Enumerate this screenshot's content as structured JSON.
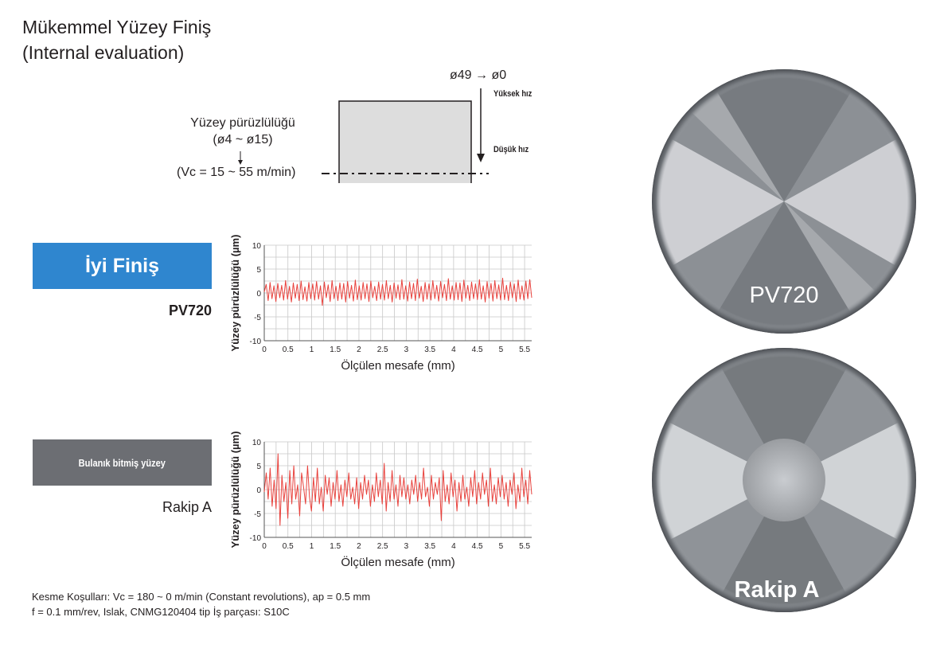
{
  "header": {
    "title_line1": "Mükemmel Yüzey Finiş",
    "title_line2": "(Internal evaluation)"
  },
  "diagram": {
    "diameter_range": "ø49 → ø0",
    "high_speed": "Yüksek hız",
    "low_speed": "Düşük hız",
    "roughness_label": "Yüzey pürüzlülüğü",
    "roughness_range": "(ø4 ~ ø15)",
    "vc_range": "(Vc = 15 ~ 55 m/min)"
  },
  "tags": {
    "good": "İyi Finiş",
    "dull": "Bulanık bitmiş yüzey"
  },
  "products": {
    "pv720": "PV720",
    "rakip": "Rakip A"
  },
  "footnote": {
    "line1": "Kesme Koşulları: Vc = 180 ~ 0 m/min (Constant revolutions), ap = 0.5 mm",
    "line2": "f = 0.1 mm/rev, Islak, CNMG120404 tip İş parçası: S10C"
  },
  "photos": {
    "label_top": "PV720",
    "label_bottom": "Rakip A"
  },
  "colors": {
    "good_tag": "#2f86cf",
    "dull_tag": "#6c6e73",
    "trace": "#e8413c",
    "grid": "#c8c8c8"
  },
  "chart_data": [
    {
      "type": "line",
      "name": "PV720",
      "xlabel_main": "Ölçülen mesafe",
      "xlabel_unit": "(mm)",
      "ylabel": "Yüzey pürüzlülüğü  (µm)",
      "xlim": [
        0,
        5.65
      ],
      "ylim": [
        -10,
        10
      ],
      "xticks": [
        "0",
        "0.5",
        "1",
        "1.5",
        "2",
        "2.5",
        "3",
        "3.5",
        "4",
        "4.5",
        "5",
        "5.5"
      ],
      "yticks": [
        "10",
        "5",
        "0",
        "-5",
        "-10"
      ],
      "series": [
        {
          "values": [
            0.2,
            1.8,
            -1.6,
            2.2,
            -1.2,
            1.5,
            -1.8,
            2.0,
            -1.0,
            1.6,
            -1.5,
            2.6,
            -1.3,
            1.4,
            -1.9,
            2.1,
            -1.1,
            1.8,
            -1.6,
            2.5,
            -1.4,
            1.3,
            -1.7,
            2.2,
            -1.2,
            1.9,
            -1.5,
            2.4,
            -1.3,
            1.5,
            -2.6,
            2.3,
            -1.0,
            1.7,
            -1.8,
            2.6,
            -1.2,
            1.4,
            -1.6,
            2.1,
            -1.3,
            2.0,
            -1.9,
            2.4,
            -1.1,
            1.6,
            -1.7,
            2.7,
            -1.4,
            1.5,
            -1.5,
            2.2,
            -1.2,
            1.9,
            -1.8,
            2.5,
            -1.0,
            1.4,
            -1.6,
            2.3,
            -1.3,
            1.8,
            -1.5,
            2.6,
            -1.2,
            1.6,
            -1.9,
            2.1,
            -1.1,
            1.7,
            -1.4,
            2.8,
            -1.3,
            1.5,
            -1.7,
            2.3,
            -1.2,
            2.0,
            -1.6,
            2.9,
            -1.1,
            1.4,
            -1.8,
            2.2,
            -1.3,
            1.9,
            -1.5,
            2.6,
            -1.2,
            1.6,
            -1.7,
            2.4,
            -1.0,
            1.8,
            -1.6,
            3.0,
            -1.3,
            1.5,
            -1.5,
            2.2,
            -1.4,
            2.1,
            -1.8,
            2.7,
            -1.1,
            1.6,
            -1.6,
            2.3,
            -1.2,
            1.9,
            -1.4,
            2.8,
            -1.3,
            1.5,
            -1.9,
            2.4,
            -1.1,
            2.0,
            -1.7,
            2.6,
            -1.2,
            1.7,
            -1.5,
            3.1,
            -1.4,
            1.6,
            -1.6,
            2.3,
            -1.0,
            1.9,
            -1.8,
            2.7,
            -1.3,
            1.5,
            -1.5,
            2.5,
            -1.2,
            2.8,
            -1.0
          ]
        }
      ]
    },
    {
      "type": "line",
      "name": "Rakip A",
      "xlabel_main": "Ölçülen mesafe",
      "xlabel_unit": "(mm)",
      "ylabel": "Yüzey pürüzlülüğü  (µm)",
      "xlim": [
        0,
        5.65
      ],
      "ylim": [
        -10,
        10
      ],
      "xticks": [
        "0",
        "0.5",
        "1",
        "1.5",
        "2",
        "2.5",
        "3",
        "3.5",
        "4",
        "4.5",
        "5",
        "5.5"
      ],
      "yticks": [
        "10",
        "5",
        "0",
        "-5",
        "-10"
      ],
      "series": [
        {
          "values": [
            -0.5,
            3.5,
            -2.0,
            4.5,
            -3.5,
            2.0,
            -4.0,
            7.5,
            -7.5,
            3.0,
            -2.5,
            1.5,
            -6.0,
            4.0,
            -3.0,
            5.0,
            -2.0,
            1.0,
            -5.5,
            3.5,
            0.5,
            -3.0,
            5.0,
            -1.5,
            -4.5,
            2.5,
            -2.5,
            4.5,
            -3.0,
            0.5,
            -4.5,
            3.0,
            -1.0,
            2.5,
            -3.5,
            1.5,
            -2.0,
            4.0,
            -2.5,
            1.0,
            -3.5,
            2.0,
            -1.5,
            3.5,
            -2.0,
            0.5,
            -3.0,
            2.5,
            -4.0,
            1.5,
            -2.0,
            3.0,
            -1.0,
            2.0,
            -3.5,
            1.0,
            -2.5,
            3.5,
            -1.5,
            2.0,
            -3.0,
            5.5,
            -4.5,
            1.5,
            -2.5,
            4.0,
            -2.0,
            1.0,
            -3.5,
            3.0,
            -1.5,
            2.5,
            -2.0,
            1.0,
            -3.0,
            2.0,
            -1.0,
            3.0,
            -2.5,
            1.5,
            -2.0,
            4.5,
            -1.5,
            0.5,
            -3.5,
            3.0,
            -2.0,
            1.5,
            -1.0,
            2.5,
            -6.5,
            4.0,
            -2.5,
            1.0,
            -3.0,
            3.5,
            -1.5,
            2.0,
            -4.5,
            1.5,
            -2.5,
            3.0,
            -2.0,
            0.5,
            -3.5,
            2.5,
            -1.5,
            4.0,
            -3.0,
            1.5,
            -2.0,
            3.5,
            -1.0,
            2.0,
            -3.5,
            4.5,
            -2.5,
            1.0,
            -3.0,
            2.5,
            -1.5,
            3.0,
            -2.0,
            1.5,
            -3.5,
            2.0,
            -1.0,
            3.5,
            -4.0,
            1.0,
            -2.5,
            4.5,
            -1.5,
            2.0,
            -3.0,
            4.0,
            -1.0
          ]
        }
      ]
    }
  ]
}
